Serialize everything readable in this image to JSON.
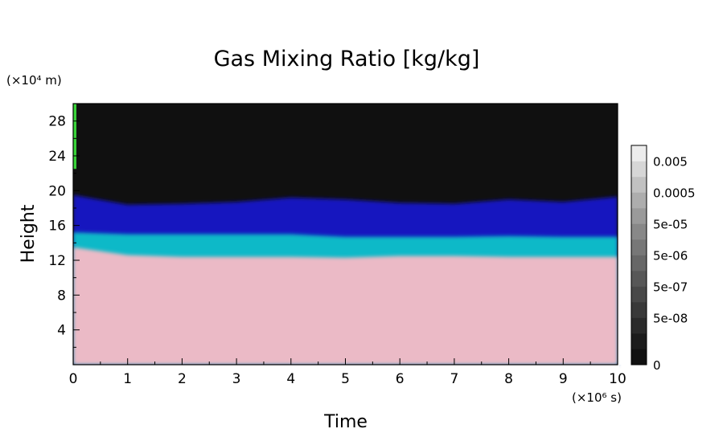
{
  "chart_data": {
    "type": "heatmap",
    "title": "Gas Mixing Ratio [kg/kg]",
    "xlabel": "Time",
    "ylabel": "Height",
    "x_multiplier": "(×10⁶ s)",
    "y_multiplier": "(×10⁴ m)",
    "xlim": [
      0,
      10
    ],
    "ylim": [
      0,
      30
    ],
    "x_ticks": [
      "0",
      "1",
      "2",
      "3",
      "4",
      "5",
      "6",
      "7",
      "8",
      "9",
      "10"
    ],
    "y_ticks": [
      "4",
      "8",
      "12",
      "16",
      "20",
      "24",
      "28"
    ],
    "colorbar": {
      "labels": [
        "0.005",
        "0.0005",
        "5e-05",
        "5e-06",
        "5e-07",
        "5e-08",
        "0"
      ],
      "levels": 14,
      "colors": [
        "#111111",
        "#1c1c1c",
        "#2a2a2a",
        "#393939",
        "#484848",
        "#575757",
        "#676767",
        "#777777",
        "#888888",
        "#9a9a9a",
        "#adadad",
        "#c1c1c1",
        "#d6d6d6",
        "#ececec"
      ]
    },
    "regions": [
      {
        "name": "low",
        "color": "#ebbac6",
        "y_top": [
          13.5,
          12.6,
          12.4,
          12.4,
          12.4,
          12.3,
          12.5,
          12.5,
          12.4,
          12.4,
          12.4
        ]
      },
      {
        "name": "cyan",
        "color": "#0fb9c8",
        "y_top": [
          15.2,
          15.0,
          15.0,
          15.0,
          15.0,
          14.7,
          14.7,
          14.7,
          14.8,
          14.7,
          14.7
        ]
      },
      {
        "name": "blue",
        "color": "#1313bf",
        "y_top": [
          19.5,
          18.4,
          18.5,
          18.7,
          19.2,
          19.0,
          18.6,
          18.5,
          19.0,
          18.7,
          19.3
        ]
      },
      {
        "name": "top",
        "color": "#101010",
        "y_top": [
          30,
          30,
          30,
          30,
          30,
          30,
          30,
          30,
          30,
          30,
          30
        ]
      }
    ],
    "edge_highlight": {
      "color": "#39d339",
      "x": 0,
      "y_range": [
        22.5,
        30
      ]
    }
  }
}
